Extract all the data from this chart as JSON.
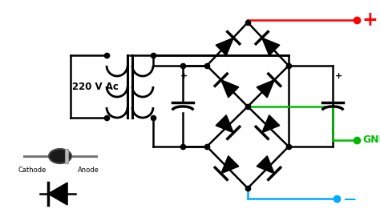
{
  "bg_color": "#ffffff",
  "wire_color": "#000000",
  "red_color": "#ff0000",
  "blue_color": "#00aaff",
  "green_color": "#00bb00",
  "text_220": "220 V Ac",
  "text_plus": "+",
  "text_gnd": "GND",
  "text_minus": "—",
  "text_cathode": "Cathode",
  "text_anode": "Anode",
  "figsize": [
    4.74,
    2.66
  ],
  "dpi": 100
}
